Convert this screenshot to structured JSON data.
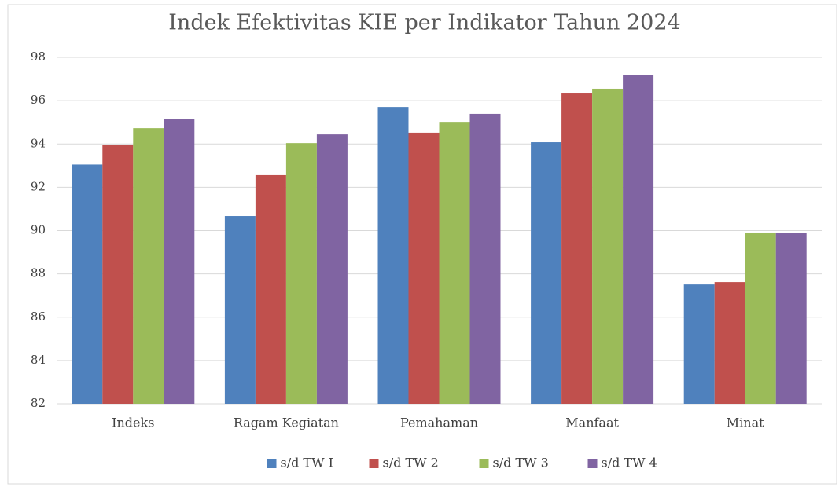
{
  "chart_data": {
    "type": "bar",
    "title": "Indek Efektivitas KIE per Indikator Tahun 2024",
    "categories": [
      "Indeks",
      "Ragam Kegiatan",
      "Pemahaman",
      "Manfaat",
      "Minat"
    ],
    "series": [
      {
        "name": "s/d TW I",
        "color": "#4f81bd",
        "values": [
          93.05,
          90.67,
          95.71,
          94.08,
          87.51
        ]
      },
      {
        "name": "s/d TW 2",
        "color": "#c0504d",
        "values": [
          93.97,
          92.56,
          94.52,
          96.33,
          87.62
        ]
      },
      {
        "name": "s/d TW 3",
        "color": "#9bbb59",
        "values": [
          94.73,
          94.04,
          95.02,
          96.55,
          89.91
        ]
      },
      {
        "name": "s/d TW 4",
        "color": "#8064a2",
        "values": [
          95.17,
          94.44,
          95.39,
          97.17,
          89.88
        ]
      }
    ],
    "ylim": [
      82,
      98
    ],
    "yticks": [
      82,
      84,
      86,
      88,
      90,
      92,
      94,
      96,
      98
    ],
    "grid": true,
    "legend": "bottom"
  }
}
